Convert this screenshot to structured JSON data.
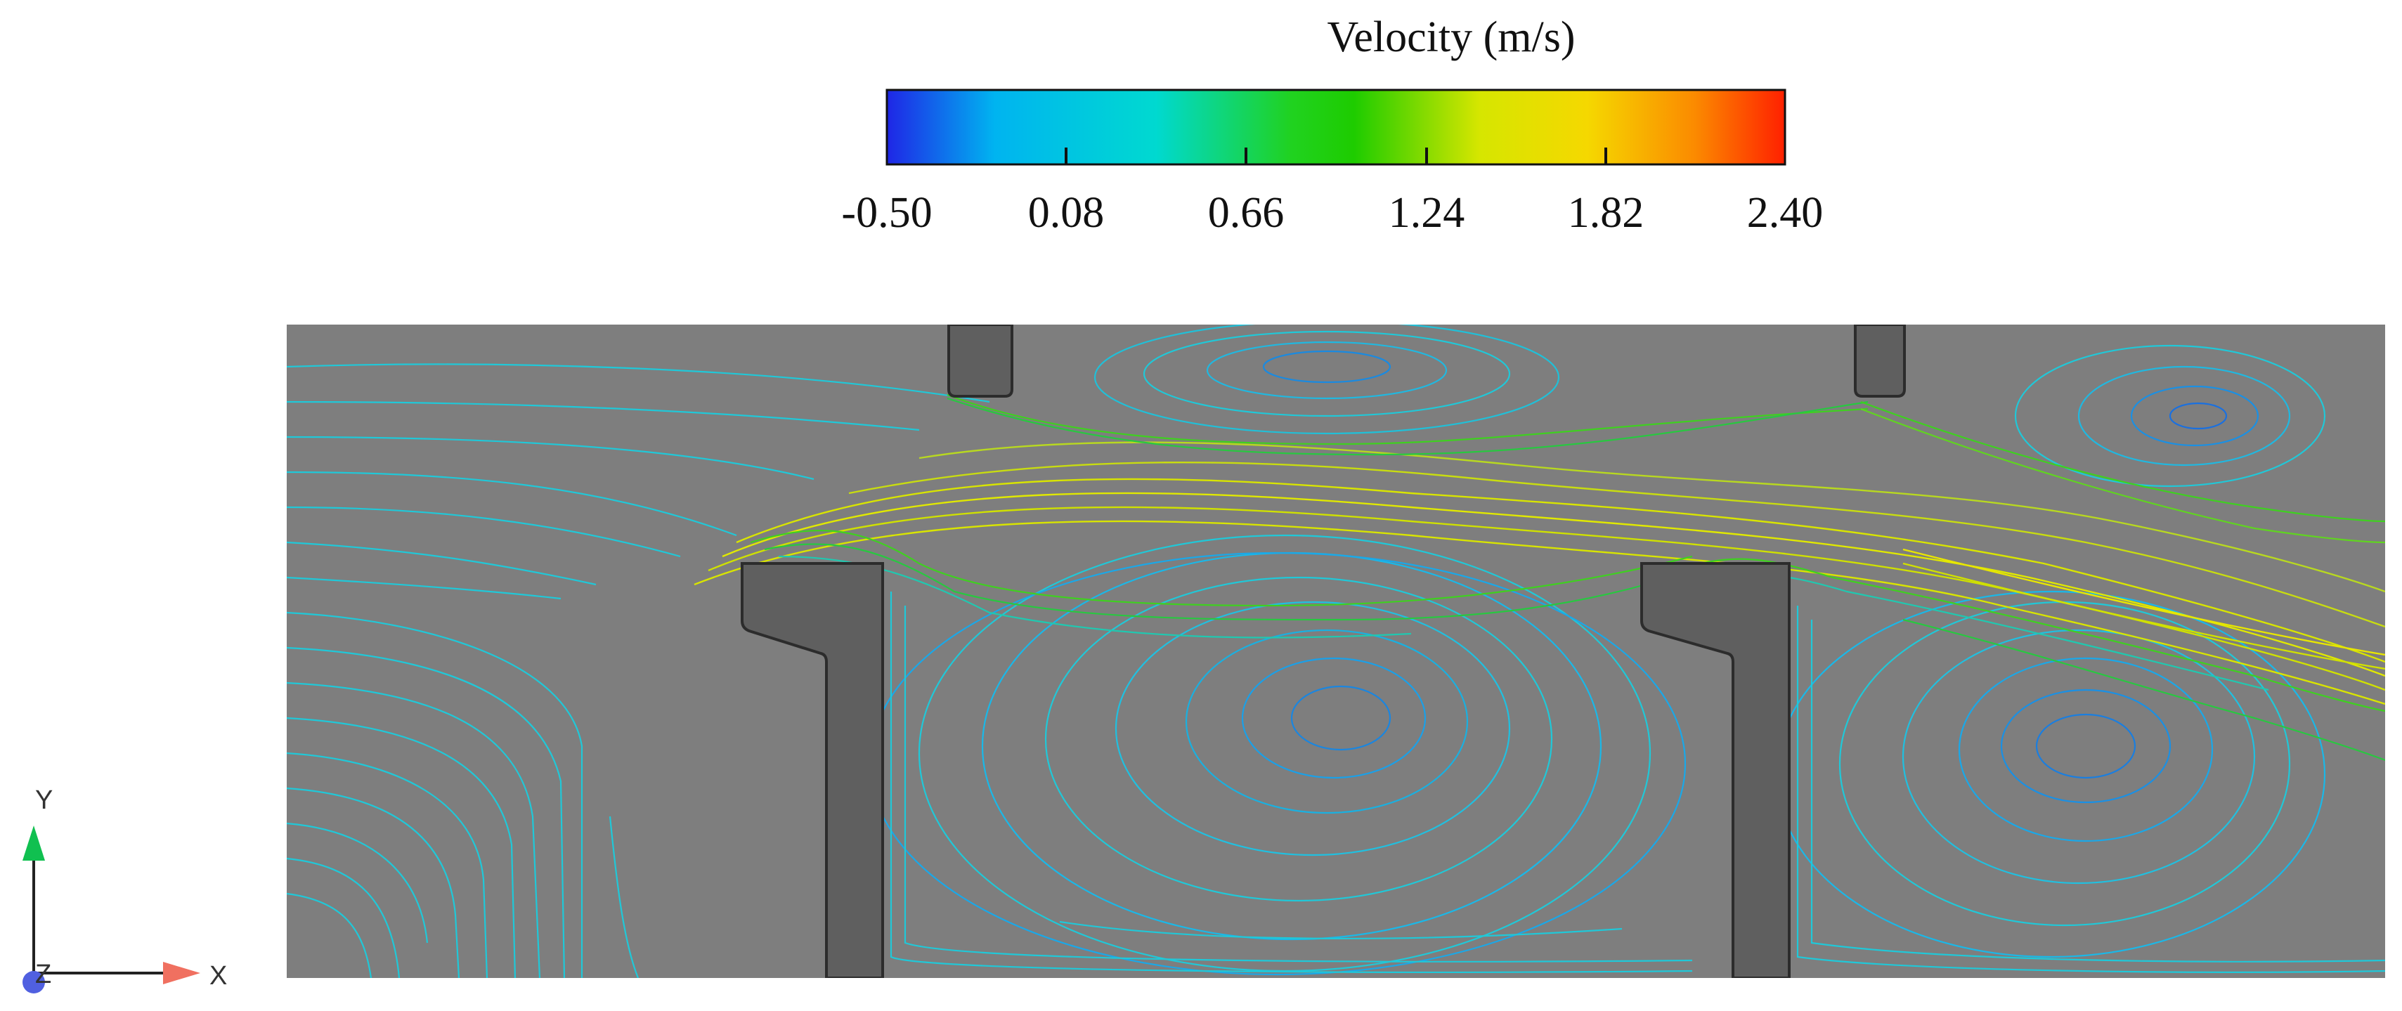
{
  "legend": {
    "title": "Velocity (m/s)",
    "min": -0.5,
    "max": 2.4,
    "ticks": [
      "-0.50",
      "0.08",
      "0.66",
      "1.24",
      "1.82",
      "2.40"
    ],
    "colormap": [
      "#1f26e6",
      "#00b4f0",
      "#00d9d0",
      "#20d220",
      "#1ecc00",
      "#d6e600",
      "#f5d800",
      "#fb8a00",
      "#ff2000"
    ]
  },
  "axes": {
    "x_label": "X",
    "y_label": "Y",
    "z_label": "Z"
  },
  "colors": {
    "domain_bg": "#7e7e7e",
    "baffle": "#5f5f5f",
    "stream_fast": "#d8e400",
    "stream_mid": "#3fd020",
    "stream_slow": "#20c8d8",
    "stream_vortex": "#1a86e0",
    "x_arrow": "#f07060",
    "y_arrow": "#10c050",
    "z_dot": "#5060e0"
  }
}
